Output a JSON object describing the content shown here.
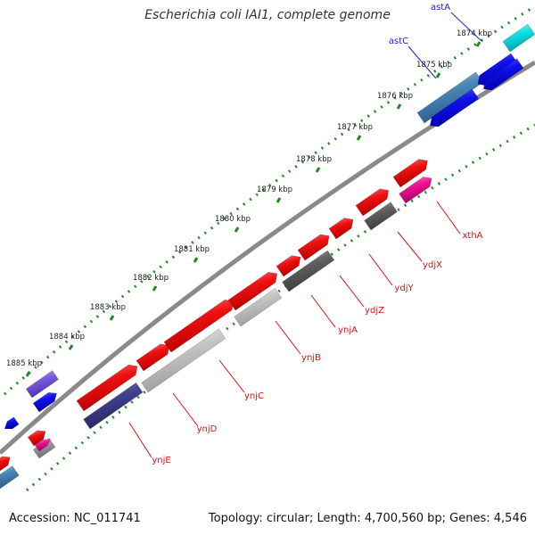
{
  "title": "Escherichia coli IAI1, complete genome",
  "accession": "Accession: NC_011741",
  "topology": "Topology: circular; Length: 4,700,560 bp; Genes: 4,546",
  "ticks": [
    "1874 kbp",
    "1875 kbp",
    "1876 kbp",
    "1877 kbp",
    "1878 kbp",
    "1879 kbp",
    "1880 kbp",
    "1881 kbp",
    "1882 kbp",
    "1883 kbp",
    "1884 kbp",
    "1885 kbp"
  ],
  "genes": [
    "astA",
    "astC",
    "xthA",
    "ydjX",
    "ydjY",
    "ydjZ",
    "ynjA",
    "ynjB",
    "ynjC",
    "ynjD",
    "ynjE"
  ],
  "colors": {
    "forward_gene": "#ee1111",
    "reverse_gene": "#1111ee",
    "backbone": "#888888",
    "tick": "#228822",
    "label_forward": "#2222cc",
    "label_reverse": "#dd1111"
  }
}
